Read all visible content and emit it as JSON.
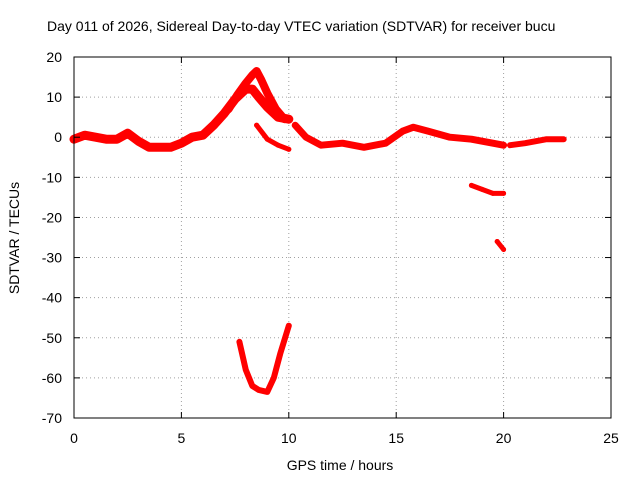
{
  "chart_data": {
    "type": "scatter",
    "title": "Day 011 of 2026, Sidereal Day-to-day VTEC variation (SDTVAR) for receiver bucu",
    "xlabel": "GPS time / hours",
    "ylabel": "SDTVAR / TECUs",
    "xlim": [
      0,
      25
    ],
    "ylim": [
      -70,
      20
    ],
    "xticks": [
      "0",
      "5",
      "10",
      "15",
      "20",
      "25"
    ],
    "yticks": [
      "20",
      "10",
      "0",
      "-10",
      "-20",
      "-30",
      "-40",
      "-50",
      "-60",
      "-70"
    ],
    "grid": true,
    "marker_color": "#ff0000",
    "series": [
      {
        "name": "main-track",
        "x": [
          0,
          0.5,
          1,
          1.5,
          2,
          2.5,
          3,
          3.5,
          4,
          4.5,
          5,
          5.5,
          6,
          6.5,
          7,
          7.5,
          8,
          8.3,
          8.6,
          9,
          9.5,
          10
        ],
        "y": [
          -0.5,
          0.5,
          0,
          -0.5,
          -0.5,
          1,
          -1,
          -2.5,
          -2.5,
          -2.5,
          -1.5,
          0,
          0.5,
          3,
          6,
          9.5,
          12,
          12,
          10,
          7.5,
          5,
          4.5
        ]
      },
      {
        "name": "spike-track",
        "x": [
          7.2,
          7.6,
          8,
          8.3,
          8.5,
          8.7,
          9,
          9.4,
          9.8
        ],
        "y": [
          7,
          10.5,
          13.5,
          15.5,
          16.5,
          14.5,
          11,
          7,
          4.5
        ]
      },
      {
        "name": "drop-branch",
        "x": [
          8.5,
          9,
          9.5,
          10
        ],
        "y": [
          3,
          -0.5,
          -2,
          -3
        ]
      },
      {
        "name": "midday-track",
        "x": [
          10.3,
          10.8,
          11.5,
          12.5,
          13.5,
          14.5,
          15.3,
          15.8,
          16.5,
          17.5,
          18.5,
          19.5,
          20
        ],
        "y": [
          3,
          0,
          -2,
          -1.5,
          -2.5,
          -1.5,
          1.5,
          2.5,
          1.5,
          0,
          -0.5,
          -1.5,
          -2
        ]
      },
      {
        "name": "late-track",
        "x": [
          20.3,
          21,
          22,
          22.8
        ],
        "y": [
          -2,
          -1.5,
          -0.5,
          -0.5
        ]
      },
      {
        "name": "low-arc",
        "x": [
          7.7,
          8,
          8.3,
          8.6,
          9,
          9.3,
          9.6,
          10
        ],
        "y": [
          -51,
          -58,
          -62,
          -63,
          -63.5,
          -60,
          -54,
          -47
        ]
      },
      {
        "name": "late-segment",
        "x": [
          18.5,
          19,
          19.5,
          20
        ],
        "y": [
          -12,
          -13,
          -14,
          -14
        ]
      },
      {
        "name": "late-dot",
        "x": [
          19.7,
          20
        ],
        "y": [
          -26,
          -28
        ]
      }
    ]
  }
}
